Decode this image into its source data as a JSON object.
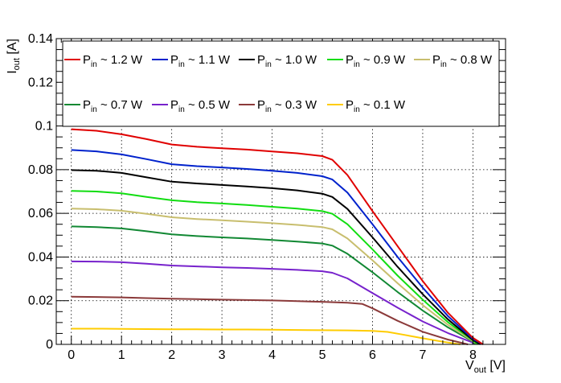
{
  "chart_data": {
    "type": "line",
    "title": "",
    "xlabel": {
      "main": "V",
      "sub": "out",
      "unit": " [V]"
    },
    "ylabel": {
      "main": "I",
      "sub": "out",
      "unit": " [A]"
    },
    "xlim": [
      -0.3,
      8.65
    ],
    "ylim": [
      0,
      0.14
    ],
    "x_ticks": [
      0,
      1,
      2,
      3,
      4,
      5,
      6,
      7,
      8
    ],
    "x_tick_labels": [
      "0",
      "1",
      "2",
      "3",
      "4",
      "5",
      "6",
      "7",
      "8"
    ],
    "y_ticks": [
      0,
      0.02,
      0.04,
      0.06,
      0.08,
      0.1,
      0.12,
      0.14
    ],
    "y_tick_labels": [
      "0",
      "0.02",
      "0.04",
      "0.06",
      "0.08",
      "0.1",
      "0.12",
      "0.14"
    ],
    "grid": true,
    "legend": "top",
    "series": [
      {
        "name": "P_in ~ 1.2 W",
        "label": {
          "main": "P",
          "sub": "in",
          "rest": " ~ 1.2 W"
        },
        "color": "#e00000",
        "x": [
          0,
          0.5,
          1,
          1.5,
          2,
          2.5,
          3,
          3.5,
          4,
          4.5,
          5,
          5.2,
          5.5,
          6,
          6.5,
          7,
          7.5,
          8,
          8.2
        ],
        "y": [
          0.0985,
          0.0978,
          0.0962,
          0.094,
          0.0915,
          0.0905,
          0.0898,
          0.0892,
          0.0883,
          0.0875,
          0.0862,
          0.0845,
          0.0775,
          0.061,
          0.045,
          0.029,
          0.0145,
          0.003,
          0.0
        ]
      },
      {
        "name": "P_in ~ 1.1 W",
        "label": {
          "main": "P",
          "sub": "in",
          "rest": " ~ 1.1 W"
        },
        "color": "#0022cc",
        "x": [
          0,
          0.5,
          1,
          1.5,
          2,
          2.5,
          3,
          3.5,
          4,
          4.5,
          5,
          5.2,
          5.5,
          6,
          6.5,
          7,
          7.5,
          8,
          8.2
        ],
        "y": [
          0.089,
          0.0884,
          0.087,
          0.0848,
          0.0825,
          0.0816,
          0.081,
          0.0803,
          0.0795,
          0.0785,
          0.077,
          0.0755,
          0.0695,
          0.055,
          0.04,
          0.026,
          0.013,
          0.0025,
          0.0
        ]
      },
      {
        "name": "P_in ~ 1.0 W",
        "label": {
          "main": "P",
          "sub": "in",
          "rest": " ~ 1.0 W"
        },
        "color": "#000000",
        "x": [
          0,
          0.5,
          1,
          1.5,
          2,
          2.5,
          3,
          3.5,
          4,
          4.5,
          5,
          5.2,
          5.5,
          6,
          6.5,
          7,
          7.5,
          8,
          8.15
        ],
        "y": [
          0.0798,
          0.0795,
          0.0785,
          0.0765,
          0.0745,
          0.0737,
          0.073,
          0.0723,
          0.0715,
          0.0705,
          0.069,
          0.0675,
          0.062,
          0.049,
          0.0355,
          0.023,
          0.0115,
          0.002,
          0.0
        ]
      },
      {
        "name": "P_in ~ 0.9 W",
        "label": {
          "main": "P",
          "sub": "in",
          "rest": " ~ 0.9 W"
        },
        "color": "#11dd11",
        "x": [
          0,
          0.5,
          1,
          1.5,
          2,
          2.5,
          3,
          3.5,
          4,
          4.5,
          5,
          5.2,
          5.5,
          6,
          6.5,
          7,
          7.5,
          8,
          8.1
        ],
        "y": [
          0.0703,
          0.07,
          0.0692,
          0.0675,
          0.066,
          0.0651,
          0.0645,
          0.0638,
          0.063,
          0.0622,
          0.061,
          0.0598,
          0.055,
          0.0435,
          0.0315,
          0.0205,
          0.0102,
          0.0018,
          0.0
        ]
      },
      {
        "name": "P_in ~ 0.8 W",
        "label": {
          "main": "P",
          "sub": "in",
          "rest": " ~ 0.8 W"
        },
        "color": "#c8be6e",
        "x": [
          0,
          0.5,
          1,
          1.5,
          2,
          2.5,
          3,
          3.5,
          4,
          4.5,
          5,
          5.2,
          5.5,
          6,
          6.5,
          7,
          7.5,
          8,
          8.1
        ],
        "y": [
          0.0622,
          0.0619,
          0.0612,
          0.0598,
          0.0582,
          0.0574,
          0.0568,
          0.0562,
          0.0555,
          0.0547,
          0.0537,
          0.0527,
          0.0485,
          0.0385,
          0.028,
          0.018,
          0.009,
          0.0015,
          0.0
        ]
      },
      {
        "name": "P_in ~ 0.7 W",
        "label": {
          "main": "P",
          "sub": "in",
          "rest": " ~ 0.7 W"
        },
        "color": "#118833",
        "x": [
          0,
          0.5,
          1,
          1.5,
          2,
          2.5,
          3,
          3.5,
          4,
          4.5,
          5,
          5.2,
          5.5,
          6,
          6.5,
          7,
          7.5,
          8,
          8.05
        ],
        "y": [
          0.054,
          0.0537,
          0.0531,
          0.0518,
          0.0504,
          0.0496,
          0.049,
          0.0485,
          0.0478,
          0.0471,
          0.0462,
          0.0452,
          0.0415,
          0.033,
          0.024,
          0.0155,
          0.0078,
          0.0013,
          0.0
        ]
      },
      {
        "name": "P_in ~ 0.5 W",
        "label": {
          "main": "P",
          "sub": "in",
          "rest": " ~ 0.5 W"
        },
        "color": "#7722cc",
        "x": [
          0,
          0.5,
          1,
          1.5,
          2,
          2.5,
          3,
          3.5,
          4,
          4.5,
          5,
          5.2,
          5.5,
          6,
          6.5,
          7,
          7.5,
          8,
          8.0
        ],
        "y": [
          0.038,
          0.0379,
          0.0376,
          0.0369,
          0.0361,
          0.0357,
          0.0353,
          0.035,
          0.0346,
          0.0341,
          0.0335,
          0.0328,
          0.0302,
          0.0235,
          0.0168,
          0.0105,
          0.0052,
          0.0008,
          0.0
        ]
      },
      {
        "name": "P_in ~ 0.3 W",
        "label": {
          "main": "P",
          "sub": "in",
          "rest": " ~ 0.3 W"
        },
        "color": "#8b3a3a",
        "x": [
          0,
          0.5,
          1,
          1.5,
          2,
          2.5,
          3,
          3.5,
          4,
          4.5,
          5,
          5.5,
          5.8,
          6,
          6.5,
          7,
          7.5,
          7.9
        ],
        "y": [
          0.0218,
          0.0217,
          0.0215,
          0.0212,
          0.0209,
          0.0207,
          0.0205,
          0.0203,
          0.0201,
          0.0198,
          0.0195,
          0.0191,
          0.0185,
          0.0165,
          0.0108,
          0.0058,
          0.0022,
          0.0
        ]
      },
      {
        "name": "P_in ~ 0.1 W",
        "label": {
          "main": "P",
          "sub": "in",
          "rest": " ~ 0.1 W"
        },
        "color": "#ffcc00",
        "x": [
          0,
          0.5,
          1,
          1.5,
          2,
          2.5,
          3,
          3.5,
          4,
          4.5,
          5,
          5.5,
          6,
          6.3,
          6.6,
          7,
          7.4,
          7.75
        ],
        "y": [
          0.0072,
          0.0072,
          0.0071,
          0.007,
          0.0069,
          0.0069,
          0.0068,
          0.0068,
          0.0067,
          0.0066,
          0.0065,
          0.0064,
          0.0062,
          0.0057,
          0.0045,
          0.0028,
          0.0012,
          0.0
        ]
      }
    ]
  }
}
